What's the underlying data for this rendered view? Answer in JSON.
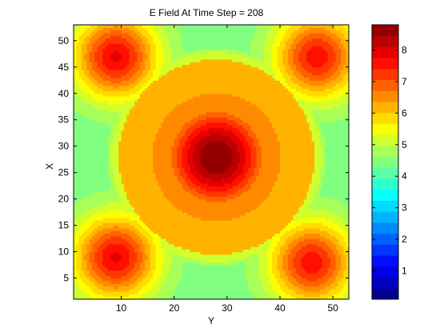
{
  "chart_data": {
    "type": "heatmap",
    "title": "E Field At Time Step = 208",
    "xlabel": "Y",
    "ylabel": "X",
    "xlim": [
      1,
      53
    ],
    "ylim": [
      1,
      53
    ],
    "xticks": [
      10,
      20,
      30,
      40,
      50
    ],
    "yticks": [
      5,
      10,
      15,
      20,
      25,
      30,
      35,
      40,
      45,
      50
    ],
    "colorbar": {
      "range": [
        0.1,
        8.8
      ],
      "ticks": [
        1,
        2,
        3,
        4,
        5,
        6,
        7,
        8
      ],
      "levels": 25,
      "colormap": "jet"
    },
    "features": [
      {
        "kind": "peak",
        "x": 28,
        "y": 28,
        "value": 8.8
      },
      {
        "kind": "peak",
        "x": 9,
        "y": 47,
        "value": 7.8
      },
      {
        "kind": "peak",
        "x": 47,
        "y": 47,
        "value": 7.6
      },
      {
        "kind": "peak",
        "x": 9,
        "y": 9,
        "value": 7.8
      },
      {
        "kind": "peak",
        "x": 46,
        "y": 8,
        "value": 7.6
      },
      {
        "kind": "ring",
        "x": 28,
        "y": 28,
        "radius": 19,
        "value": 5.2
      },
      {
        "kind": "ring",
        "x": 28,
        "y": 28,
        "radius": 23,
        "value": 4.3
      }
    ],
    "background_value": 4.4
  }
}
